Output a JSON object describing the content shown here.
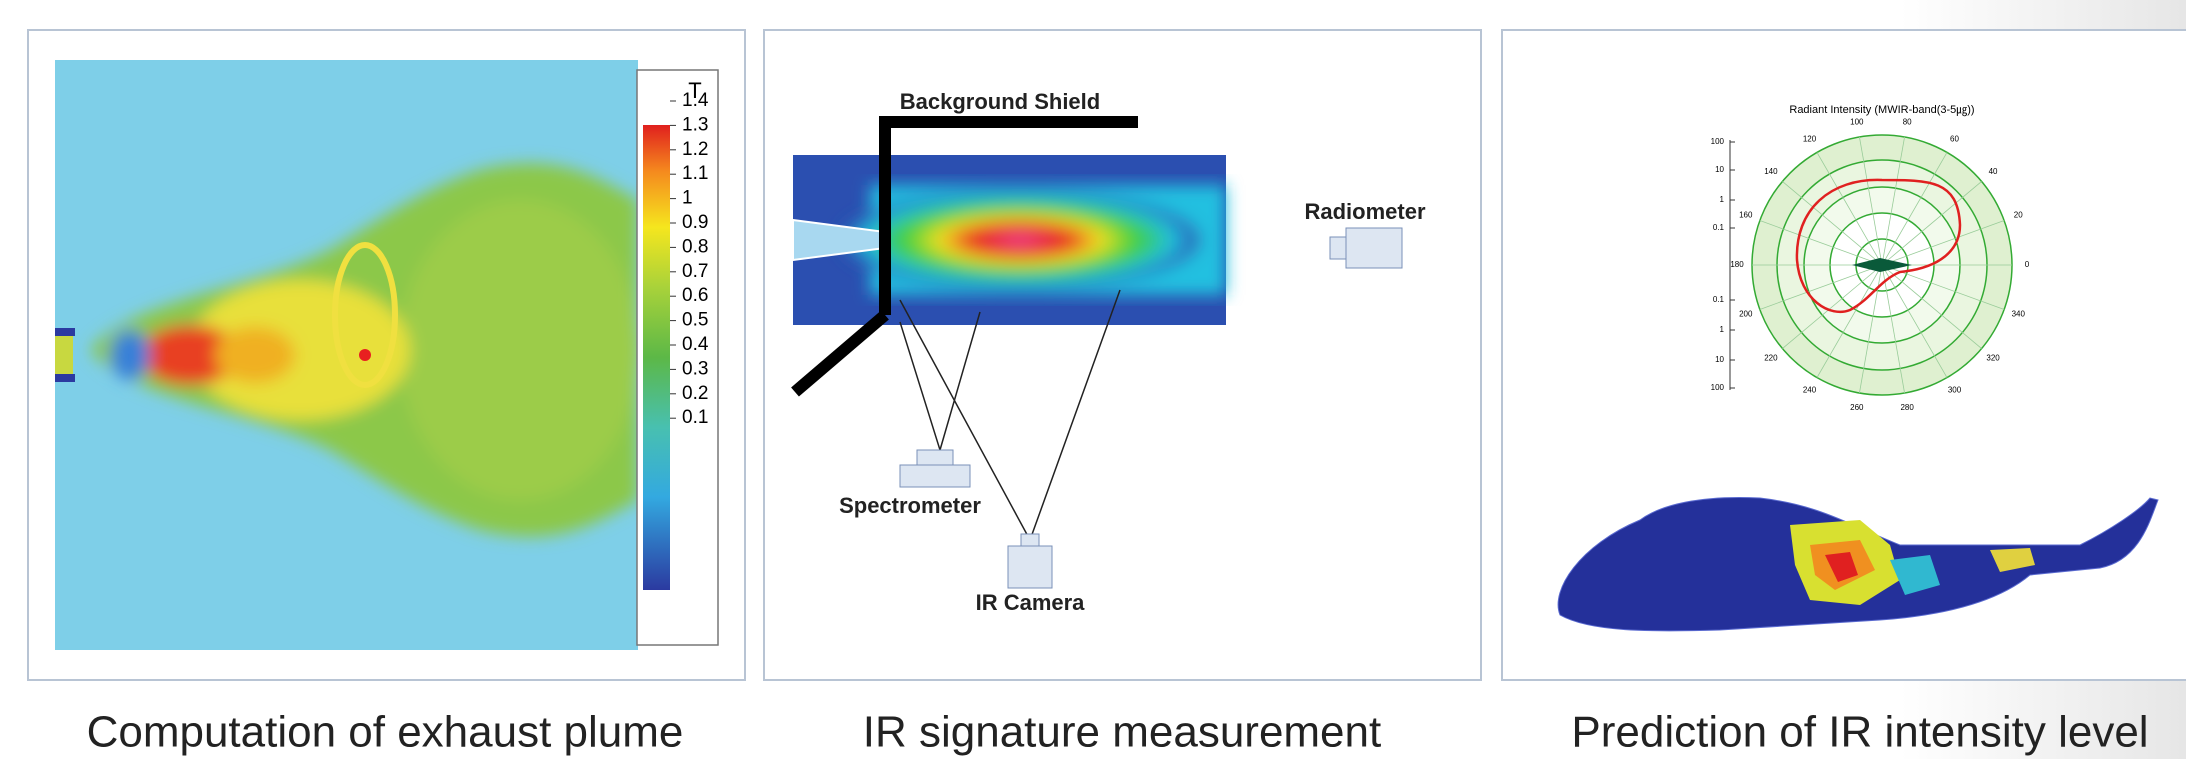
{
  "panels": [
    {
      "caption": "Computation of exhaust plume",
      "legend_title": "T",
      "legend_ticks": [
        1.4,
        1.3,
        1.2,
        1.1,
        1,
        0.9,
        0.8,
        0.7,
        0.6,
        0.5,
        0.4,
        0.3,
        0.2,
        0.1
      ]
    },
    {
      "caption": "IR signature measurement",
      "labels": [
        "Background Shield",
        "Radiometer",
        "Spectrometer",
        "IR Camera"
      ]
    },
    {
      "caption": "Prediction of IR intensity level",
      "polar_title": "Radiant Intensity (MWIR-band(3-5㎍))",
      "angles": [
        0,
        20,
        40,
        60,
        80,
        100,
        120,
        140,
        160,
        180,
        200,
        220,
        240,
        260,
        280,
        300,
        320,
        340
      ],
      "radial_labels": [
        100,
        10,
        1,
        0.1,
        0.1,
        1,
        10,
        100
      ]
    }
  ]
}
